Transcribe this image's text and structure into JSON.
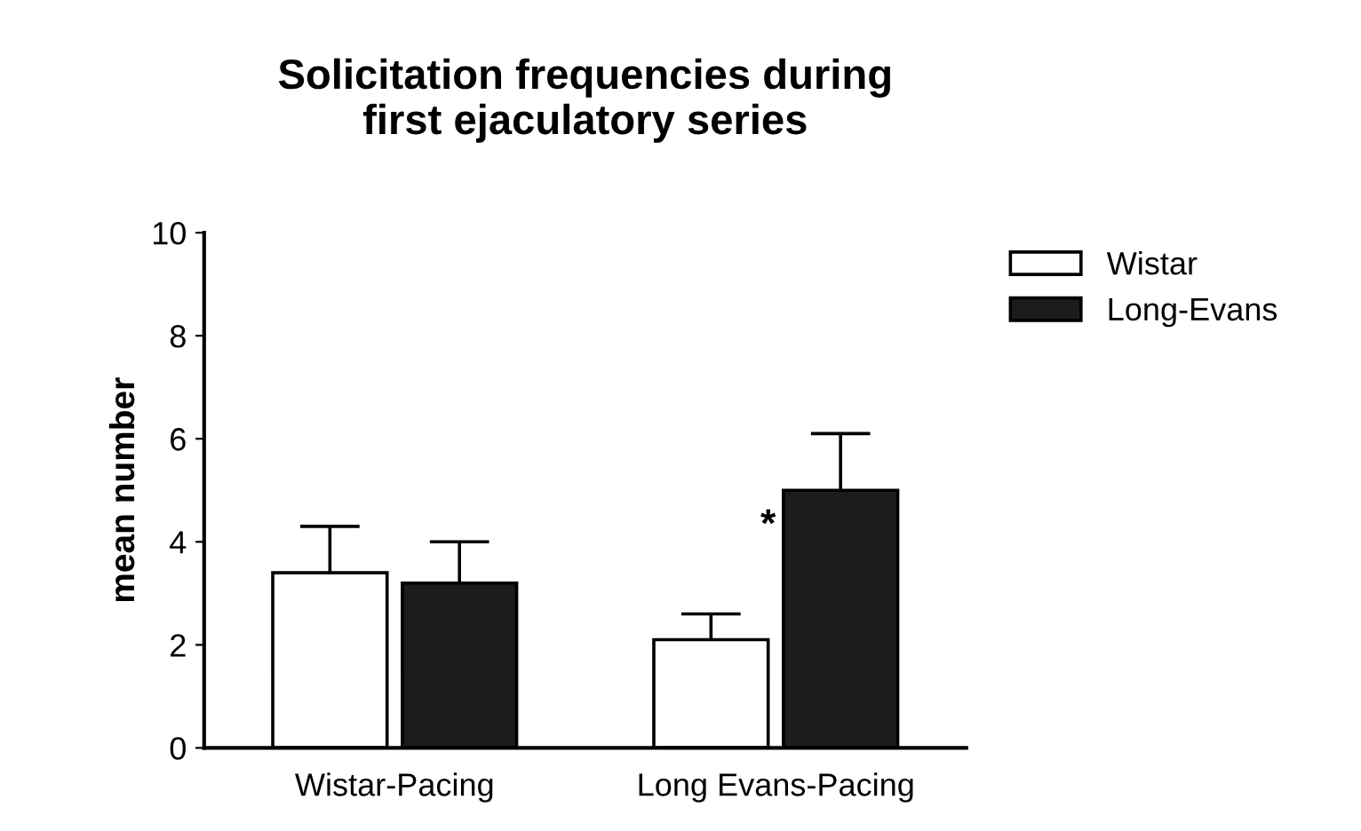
{
  "chart_data": {
    "type": "bar",
    "title": "Solicitation frequencies during\nfirst ejaculatory series",
    "ylabel": "mean number",
    "categories": [
      "Wistar-Pacing",
      "Long Evans-Pacing"
    ],
    "series": [
      {
        "name": "Wistar",
        "color": "#ffffff",
        "values": [
          3.4,
          2.1
        ],
        "errors": [
          0.9,
          0.5
        ]
      },
      {
        "name": "Long-Evans",
        "color": "#1c1c1c",
        "values": [
          3.2,
          5.0
        ],
        "errors": [
          0.8,
          1.1
        ]
      }
    ],
    "ylim": [
      0,
      10
    ],
    "yticks": [
      0,
      2,
      4,
      6,
      8,
      10
    ],
    "grid": false,
    "legend": "top right",
    "annotations": [
      {
        "text": "*",
        "x": "Long Evans-Pacing",
        "y": 4.3
      }
    ]
  }
}
